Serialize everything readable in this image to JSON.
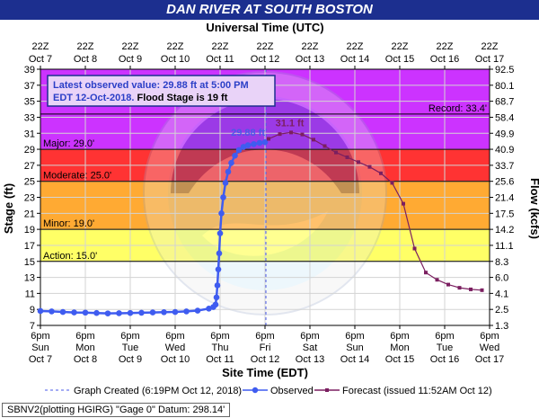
{
  "chart_data": {
    "type": "line",
    "title": "DAN RIVER AT SOUTH BOSTON",
    "top_axis_title": "Universal Time (UTC)",
    "xlabel": "Site Time (EDT)",
    "ylabel": "Stage (ft)",
    "y2label": "Flow (kcfs)",
    "ylim": [
      7,
      39
    ],
    "yticks": [
      7,
      9,
      11,
      13,
      15,
      17,
      19,
      21,
      23,
      25,
      27,
      29,
      31,
      33,
      35,
      37,
      39
    ],
    "flow_ticks": [
      "1.3",
      "2.5",
      "4.1",
      "6.0",
      "8.3",
      "11.1",
      "14.2",
      "17.5",
      "21.4",
      "25.6",
      "33.7",
      "40.9",
      "49.9",
      "58.4",
      "68.7",
      "80.1",
      "92.5"
    ],
    "x_ticks_top": [
      {
        "time": "22Z",
        "day": "Oct 7"
      },
      {
        "time": "22Z",
        "day": "Oct 8"
      },
      {
        "time": "22Z",
        "day": "Oct 9"
      },
      {
        "time": "22Z",
        "day": "Oct 10"
      },
      {
        "time": "22Z",
        "day": "Oct 11"
      },
      {
        "time": "22Z",
        "day": "Oct 12"
      },
      {
        "time": "22Z",
        "day": "Oct 13"
      },
      {
        "time": "22Z",
        "day": "Oct 14"
      },
      {
        "time": "22Z",
        "day": "Oct 15"
      },
      {
        "time": "22Z",
        "day": "Oct 16"
      },
      {
        "time": "22Z",
        "day": "Oct 17"
      }
    ],
    "x_ticks_bottom": [
      {
        "time": "6pm",
        "wd": "Sun",
        "day": "Oct 7"
      },
      {
        "time": "6pm",
        "wd": "Mon",
        "day": "Oct 8"
      },
      {
        "time": "6pm",
        "wd": "Tue",
        "day": "Oct 9"
      },
      {
        "time": "6pm",
        "wd": "Wed",
        "day": "Oct 10"
      },
      {
        "time": "6pm",
        "wd": "Thu",
        "day": "Oct 11"
      },
      {
        "time": "6pm",
        "wd": "Fri",
        "day": "Oct 12"
      },
      {
        "time": "6pm",
        "wd": "Sat",
        "day": "Oct 13"
      },
      {
        "time": "6pm",
        "wd": "Sun",
        "day": "Oct 14"
      },
      {
        "time": "6pm",
        "wd": "Mon",
        "day": "Oct 15"
      },
      {
        "time": "6pm",
        "wd": "Tue",
        "day": "Oct 16"
      },
      {
        "time": "6pm",
        "wd": "Wed",
        "day": "Oct 17"
      }
    ],
    "flood_bands": [
      {
        "label": "Action: 15.0'",
        "from": 15,
        "to": 19,
        "color": "#ffff66"
      },
      {
        "label": "Minor: 19.0'",
        "from": 19,
        "to": 25,
        "color": "#ffaa33"
      },
      {
        "label": "Moderate: 25.0'",
        "from": 25,
        "to": 29,
        "color": "#ff3333"
      },
      {
        "label": "Major: 29.0'",
        "from": 29,
        "to": 39,
        "color": "#cc33ff"
      }
    ],
    "record": {
      "label": "Record: 33.4'",
      "value": 33.4
    },
    "info_box": {
      "line1": "Latest observed value: 29.88 ft at 5:00 PM",
      "line2": "EDT 12-Oct-2018.",
      "line3": " Flood Stage is 19 ft"
    },
    "annotations": [
      {
        "text": "29.88 ft",
        "x": 5.0,
        "y": 29.88,
        "color": "#4a5ae8"
      },
      {
        "text": "31.1 ft",
        "x": 5.55,
        "y": 31.1,
        "color": "#7b1f60"
      }
    ],
    "graph_created_x": 5.02,
    "series": [
      {
        "name": "Observed",
        "color": "#3f5cf0",
        "points": [
          [
            0.0,
            8.8
          ],
          [
            0.25,
            8.75
          ],
          [
            0.5,
            8.68
          ],
          [
            0.75,
            8.62
          ],
          [
            1.0,
            8.6
          ],
          [
            1.25,
            8.55
          ],
          [
            1.5,
            8.5
          ],
          [
            1.75,
            8.52
          ],
          [
            2.0,
            8.55
          ],
          [
            2.25,
            8.58
          ],
          [
            2.5,
            8.62
          ],
          [
            2.75,
            8.65
          ],
          [
            3.0,
            8.68
          ],
          [
            3.25,
            8.75
          ],
          [
            3.5,
            8.85
          ],
          [
            3.75,
            9.1
          ],
          [
            3.85,
            9.3
          ],
          [
            3.9,
            9.6
          ],
          [
            3.92,
            10.5
          ],
          [
            3.94,
            12.0
          ],
          [
            3.96,
            14.0
          ],
          [
            3.98,
            16.0
          ],
          [
            4.0,
            18.5
          ],
          [
            4.03,
            21.0
          ],
          [
            4.07,
            23.0
          ],
          [
            4.12,
            24.8
          ],
          [
            4.18,
            26.2
          ],
          [
            4.25,
            27.3
          ],
          [
            4.33,
            28.2
          ],
          [
            4.42,
            28.9
          ],
          [
            4.52,
            29.3
          ],
          [
            4.62,
            29.5
          ],
          [
            4.75,
            29.65
          ],
          [
            4.88,
            29.8
          ],
          [
            5.0,
            29.88
          ]
        ]
      },
      {
        "name": "Forecast (issued 11:52AM Oct 12)",
        "color": "#7b1f60",
        "points": [
          [
            5.08,
            30.3
          ],
          [
            5.33,
            30.9
          ],
          [
            5.58,
            31.1
          ],
          [
            5.83,
            30.85
          ],
          [
            6.08,
            30.2
          ],
          [
            6.33,
            29.4
          ],
          [
            6.58,
            28.6
          ],
          [
            6.83,
            28.0
          ],
          [
            7.08,
            27.4
          ],
          [
            7.33,
            26.8
          ],
          [
            7.58,
            26.0
          ],
          [
            7.83,
            24.8
          ],
          [
            8.08,
            22.2
          ],
          [
            8.33,
            16.6
          ],
          [
            8.58,
            13.6
          ],
          [
            8.83,
            12.7
          ],
          [
            9.08,
            12.1
          ],
          [
            9.33,
            11.7
          ],
          [
            9.58,
            11.5
          ],
          [
            9.83,
            11.4
          ]
        ]
      }
    ],
    "legend": {
      "graph_created": "Graph Created (6:19PM Oct 12, 2018)",
      "observed": "Observed",
      "forecast": "Forecast (issued 11:52AM Oct 12)"
    },
    "datum_text": "SBNV2(plotting HGIRG) \"Gage 0\" Datum: 298.14'",
    "colors": {
      "grid": "#d3d3d3",
      "navy": "#1c2f8f",
      "graph_created_line": "#4a5ae8"
    }
  }
}
